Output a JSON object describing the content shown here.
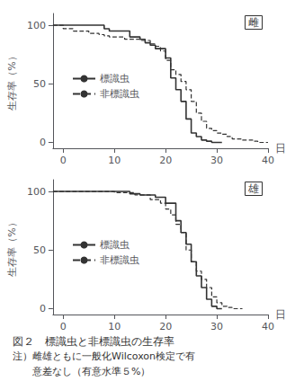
{
  "chart_data": [
    {
      "type": "step",
      "title": "雌",
      "ylabel": "生存率（%）",
      "xlabel": "日",
      "xlim": [
        -2,
        40
      ],
      "ylim": [
        -5,
        110
      ],
      "xticks": [
        0,
        10,
        20,
        30,
        40
      ],
      "yticks": [
        0,
        50,
        100
      ],
      "grid": false,
      "legend": "left",
      "series": [
        {
          "name": "標識虫",
          "color": "#333333",
          "line_style": "solid",
          "x": [
            -2,
            0,
            2,
            5,
            8,
            8,
            9,
            9,
            10,
            13,
            15,
            16,
            17,
            18,
            18,
            19,
            20,
            21,
            22,
            23,
            24,
            25,
            25,
            26,
            27,
            28,
            29,
            30,
            31
          ],
          "values": [
            100,
            100,
            100,
            100,
            100,
            97,
            97,
            95,
            95,
            90,
            88,
            85,
            83,
            80,
            80,
            80,
            72,
            55,
            45,
            35,
            20,
            10,
            8,
            5,
            2,
            1,
            0,
            0,
            0
          ]
        },
        {
          "name": "非標識虫",
          "color": "#333333",
          "line_style": "dashed",
          "x": [
            -2,
            0,
            2,
            5,
            7,
            8,
            9,
            10,
            12,
            15,
            17,
            18,
            19,
            20,
            21,
            22,
            23,
            24,
            25,
            26,
            27,
            28,
            29,
            30,
            31,
            32,
            33,
            35,
            37,
            38,
            40
          ],
          "values": [
            100,
            97,
            95,
            93,
            92,
            91,
            90,
            90,
            88,
            87,
            84,
            82,
            78,
            70,
            62,
            58,
            52,
            45,
            35,
            25,
            18,
            12,
            10,
            8,
            7,
            5,
            3,
            2,
            1,
            0,
            0
          ]
        }
      ]
    },
    {
      "type": "step",
      "title": "雄",
      "ylabel": "生存率（%）",
      "xlabel": "日",
      "xlim": [
        -2,
        40
      ],
      "ylim": [
        -5,
        110
      ],
      "xticks": [
        0,
        10,
        20,
        30,
        40
      ],
      "yticks": [
        0,
        50,
        100
      ],
      "grid": false,
      "legend": "left",
      "series": [
        {
          "name": "標識虫",
          "color": "#333333",
          "line_style": "solid",
          "x": [
            -2,
            0,
            5,
            10,
            13,
            15,
            18,
            20,
            22,
            23,
            24,
            25,
            26,
            27,
            28,
            29,
            30,
            31
          ],
          "values": [
            100,
            100,
            100,
            100,
            98,
            97,
            95,
            90,
            75,
            65,
            55,
            40,
            28,
            18,
            8,
            2,
            0,
            0
          ]
        },
        {
          "name": "非標識虫",
          "color": "#333333",
          "line_style": "dashed",
          "x": [
            -2,
            0,
            5,
            10,
            14,
            17,
            19,
            20,
            21,
            22,
            23,
            24,
            25,
            26,
            27,
            28,
            29,
            30,
            31,
            32,
            33,
            35
          ],
          "values": [
            100,
            100,
            100,
            99,
            97,
            93,
            90,
            85,
            80,
            72,
            65,
            50,
            40,
            32,
            25,
            18,
            10,
            5,
            2,
            1,
            0,
            0
          ]
        }
      ],
      "annotations": [
        "図２　標識虫と非標識虫の生存率",
        "注）雌雄ともに一般化Wilcoxon検定で有",
        "　　意差なし（有意水準５%）"
      ]
    }
  ]
}
